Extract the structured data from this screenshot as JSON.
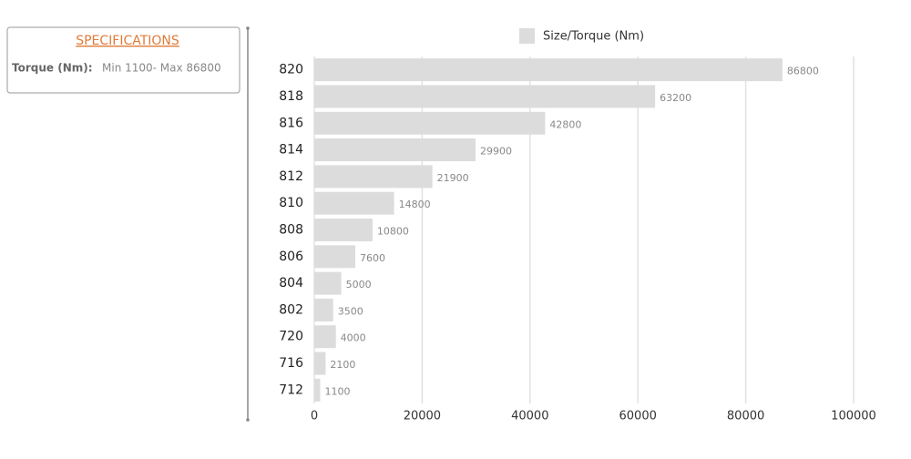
{
  "specs": {
    "title": "SPECIFICATIONS",
    "label": "Torque (Nm):",
    "value": "Min 1100- Max 86800"
  },
  "chart_data": {
    "type": "bar",
    "orientation": "horizontal",
    "categories": [
      "820",
      "818",
      "816",
      "814",
      "812",
      "810",
      "808",
      "806",
      "804",
      "802",
      "720",
      "716",
      "712"
    ],
    "series": [
      {
        "name": "Size/Torque (Nm)",
        "color": "#dcdcdc",
        "values": [
          86800,
          63200,
          42800,
          29900,
          21900,
          14800,
          10800,
          7600,
          5000,
          3500,
          4000,
          2100,
          1100
        ]
      }
    ],
    "xlim": [
      0,
      100000
    ],
    "xticks": [
      0,
      20000,
      40000,
      60000,
      80000,
      100000
    ],
    "grid": true
  }
}
